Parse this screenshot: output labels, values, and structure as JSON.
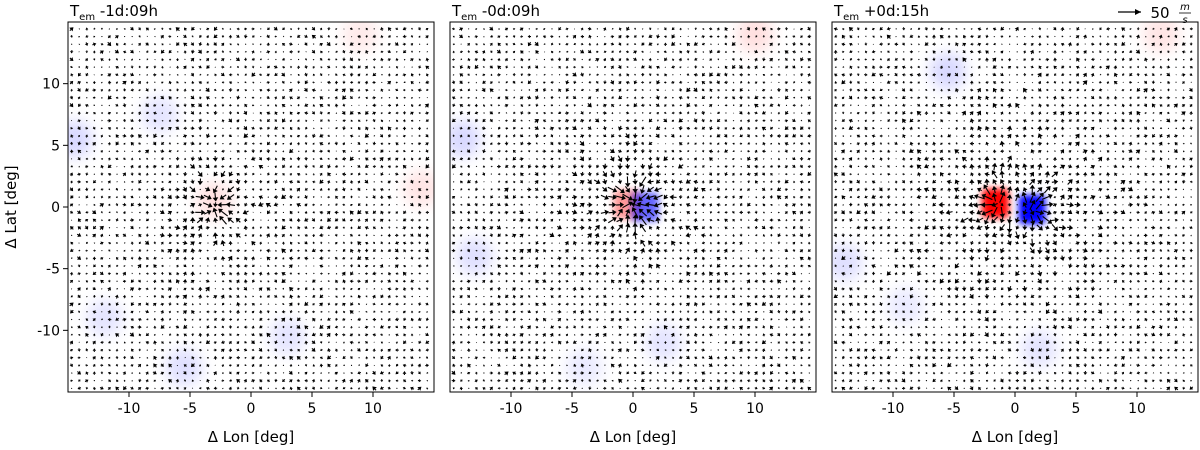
{
  "figure": {
    "quiver_key": {
      "value": "50",
      "unit_numerator": "m",
      "unit_denominator": "s"
    }
  },
  "chart_data": [
    {
      "type": "quiver",
      "title": "T",
      "title_subscript": "em",
      "title_suffix": " -1d:09h",
      "xlabel": "Δ Lon [deg]",
      "ylabel": "Δ Lat [deg]",
      "xlim": [
        -15,
        15
      ],
      "ylim": [
        -15,
        15
      ],
      "xticks": [
        -10,
        -5,
        0,
        5,
        10
      ],
      "yticks": [
        -10,
        -5,
        0,
        5,
        10
      ],
      "grid": false,
      "colormap": "bwr",
      "features": [
        {
          "kind": "convergence",
          "x": -3,
          "y": 0,
          "strength": 1.0
        }
      ],
      "patches": [
        {
          "x": -14.5,
          "y": 5.5,
          "value": -0.15
        },
        {
          "x": -7.5,
          "y": 7.5,
          "value": -0.1
        },
        {
          "x": -3.0,
          "y": 0.5,
          "value": 0.12
        },
        {
          "x": -12.0,
          "y": -9.0,
          "value": -0.1
        },
        {
          "x": -5.5,
          "y": -13.0,
          "value": -0.12
        },
        {
          "x": 3.0,
          "y": -10.5,
          "value": -0.1
        },
        {
          "x": 14.0,
          "y": 1.5,
          "value": 0.1
        },
        {
          "x": 9.0,
          "y": 14.0,
          "value": 0.08
        }
      ]
    },
    {
      "type": "quiver",
      "title": "T",
      "title_subscript": "em",
      "title_suffix": " -0d:09h",
      "xlabel": "Δ Lon [deg]",
      "ylabel": "",
      "xlim": [
        -15,
        15
      ],
      "ylim": [
        -15,
        15
      ],
      "xticks": [
        -10,
        -5,
        0,
        5,
        10
      ],
      "yticks": [],
      "grid": false,
      "colormap": "bwr",
      "features": [
        {
          "kind": "convergence",
          "x": 0,
          "y": 0.3,
          "strength": 1.5
        }
      ],
      "patches": [
        {
          "x": -0.5,
          "y": 0.2,
          "value": 0.4
        },
        {
          "x": 1.0,
          "y": 0.0,
          "value": -0.6
        },
        {
          "x": -14.0,
          "y": 5.5,
          "value": -0.15
        },
        {
          "x": -13.0,
          "y": -4.0,
          "value": -0.12
        },
        {
          "x": 10.0,
          "y": 14.0,
          "value": 0.12
        },
        {
          "x": 2.5,
          "y": -11.0,
          "value": -0.1
        },
        {
          "x": -4.0,
          "y": -13.0,
          "value": -0.08
        }
      ]
    },
    {
      "type": "quiver",
      "title": "T",
      "title_subscript": "em",
      "title_suffix": " +0d:15h",
      "xlabel": "Δ Lon [deg]",
      "ylabel": "",
      "xlim": [
        -15,
        15
      ],
      "ylim": [
        -15,
        15
      ],
      "xticks": [
        -10,
        -5,
        0,
        5,
        10
      ],
      "yticks": [],
      "grid": false,
      "colormap": "bwr",
      "features": [
        {
          "kind": "divergence",
          "x": -1.5,
          "y": 0.2,
          "strength": 1.2
        },
        {
          "kind": "divergence",
          "x": 1.5,
          "y": -0.2,
          "strength": 1.2
        }
      ],
      "patches": [
        {
          "x": -1.6,
          "y": 0.3,
          "value": 1.0
        },
        {
          "x": 1.4,
          "y": -0.2,
          "value": -1.0
        },
        {
          "x": -5.5,
          "y": 11.0,
          "value": -0.15
        },
        {
          "x": -14.0,
          "y": -4.5,
          "value": -0.12
        },
        {
          "x": 12.0,
          "y": 14.0,
          "value": 0.1
        },
        {
          "x": 2.0,
          "y": -11.5,
          "value": -0.1
        },
        {
          "x": -9.0,
          "y": -8.0,
          "value": -0.08
        }
      ]
    }
  ]
}
